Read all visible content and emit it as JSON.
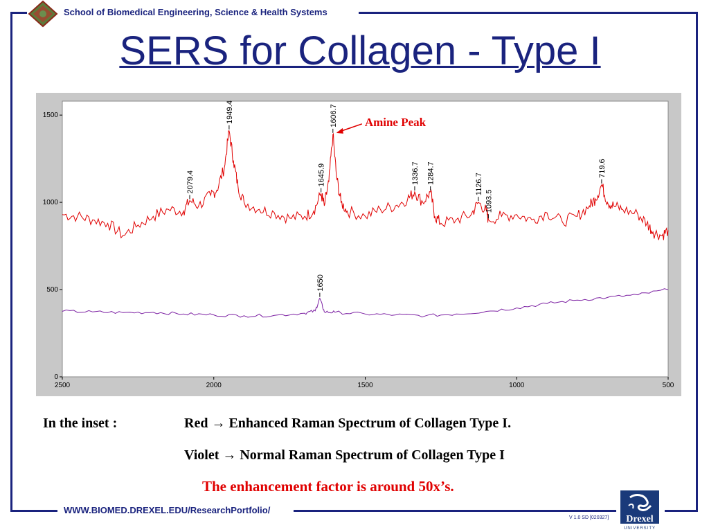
{
  "header": {
    "school": "School of Biomedical Engineering, Science & Health Systems"
  },
  "title": "SERS for Collagen - Type I",
  "chart_data": {
    "type": "line",
    "title": "",
    "xlabel": "",
    "ylabel": "",
    "xlim": [
      2500,
      500
    ],
    "ylim": [
      0,
      1580
    ],
    "x_ticks": [
      2500,
      2000,
      1500,
      1000,
      500
    ],
    "y_ticks": [
      0,
      500,
      1000,
      1500
    ],
    "grid": false,
    "series": [
      {
        "color": "#e00000",
        "x": [
          2500,
          2450,
          2400,
          2350,
          2300,
          2250,
          2200,
          2150,
          2100,
          2079.4,
          2050,
          2010,
          1990,
          1965,
          1949.4,
          1935,
          1920,
          1900,
          1850,
          1800,
          1750,
          1700,
          1670,
          1645.9,
          1635,
          1620,
          1606.7,
          1595,
          1580,
          1560,
          1500,
          1450,
          1400,
          1360,
          1336.7,
          1310,
          1284.7,
          1270,
          1250,
          1200,
          1150,
          1126.7,
          1100,
          1093.5,
          1050,
          1000,
          950,
          900,
          850,
          800,
          760,
          740,
          719.6,
          700,
          680,
          650,
          600,
          570,
          550,
          520,
          500
        ],
        "values": [
          930,
          920,
          900,
          880,
          810,
          870,
          920,
          960,
          950,
          1010,
          980,
          1040,
          1070,
          1200,
          1410,
          1240,
          1090,
          1000,
          960,
          940,
          910,
          920,
          950,
          1050,
          980,
          1120,
          1390,
          1150,
          1000,
          950,
          920,
          960,
          980,
          1020,
          1060,
          1000,
          1060,
          920,
          880,
          900,
          930,
          1000,
          950,
          900,
          920,
          930,
          900,
          940,
          890,
          920,
          980,
          1020,
          1100,
          1000,
          980,
          960,
          930,
          880,
          830,
          810,
          840
        ]
      },
      {
        "color": "#7b1fa2",
        "x": [
          2500,
          2400,
          2300,
          2200,
          2100,
          2000,
          1900,
          1800,
          1700,
          1665,
          1650,
          1635,
          1600,
          1500,
          1400,
          1300,
          1200,
          1100,
          1000,
          900,
          800,
          700,
          600,
          500
        ],
        "values": [
          375,
          372,
          368,
          370,
          360,
          355,
          350,
          352,
          365,
          378,
          450,
          372,
          370,
          360,
          355,
          350,
          360,
          375,
          395,
          420,
          440,
          455,
          470,
          500
        ]
      }
    ],
    "peak_labels": [
      {
        "x": 2079.4,
        "y": 1010,
        "label": "2079.4",
        "series": 0
      },
      {
        "x": 1949.4,
        "y": 1410,
        "label": "1949.4",
        "series": 0
      },
      {
        "x": 1645.9,
        "y": 1050,
        "label": "1645.9",
        "series": 0
      },
      {
        "x": 1606.7,
        "y": 1390,
        "label": "1606.7",
        "series": 0
      },
      {
        "x": 1336.7,
        "y": 1060,
        "label": "1336.7",
        "series": 0
      },
      {
        "x": 1284.7,
        "y": 1060,
        "label": "1284.7",
        "series": 0
      },
      {
        "x": 1126.7,
        "y": 1000,
        "label": "1126.7",
        "series": 0
      },
      {
        "x": 1093.5,
        "y": 900,
        "label": "1093.5",
        "series": 0
      },
      {
        "x": 719.6,
        "y": 1100,
        "label": "719.6",
        "series": 0
      },
      {
        "x": 1650,
        "y": 450,
        "label": "1650",
        "series": 1
      }
    ],
    "annotation": {
      "text": "Amine Peak",
      "color": "#e00000",
      "target_x": 1606.7,
      "target_y": 1390
    }
  },
  "captions": {
    "inset_label": "In the inset :",
    "red_line": "Red → Enhanced Raman Spectrum of Collagen Type I.",
    "violet_line": "Violet → Normal Raman Spectrum of Collagen Type I",
    "note": "The enhancement factor is around 50x’s."
  },
  "footer": {
    "url": "WWW.BIOMED.DREXEL.EDU/ResearchPortfolio/",
    "code": "V 1.0 SD [020327]",
    "logo_text": "Drexel",
    "logo_sub": "UNIVERSITY"
  },
  "colors": {
    "brand": "#1a237e",
    "accent": "#e00000",
    "violet": "#7b1fa2"
  }
}
